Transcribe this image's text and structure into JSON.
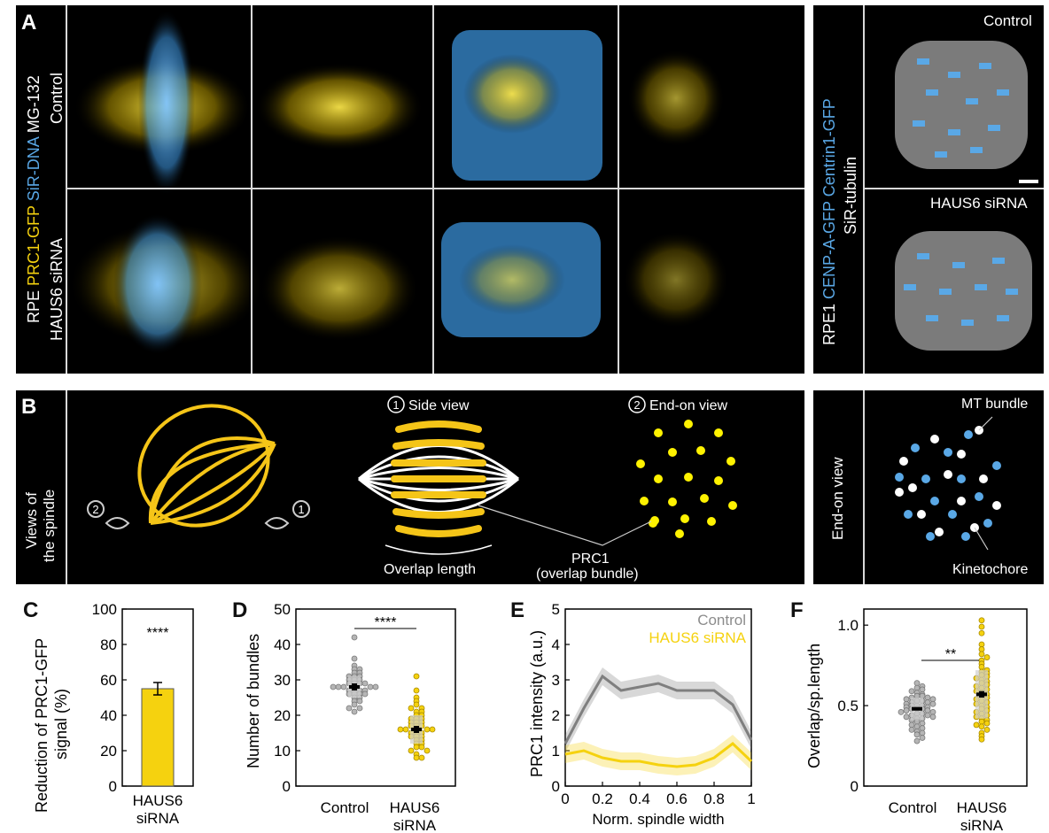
{
  "panel_a": {
    "label": "A",
    "left_axis": {
      "rpe": "RPE",
      "prc1": "PRC1-GFP",
      "sir_dna": "SiR-DNA",
      "mg": "MG-132"
    },
    "rows": [
      "Control",
      "HAUS6 siRNA"
    ],
    "right_axis": {
      "rpe1": "RPE1",
      "cenpa": "CENP-A-GFP",
      "centrin": "Centrin1-GFP",
      "sir_tub": "SiR-tubulin"
    },
    "right_rows": [
      "Control",
      "HAUS6 siRNA"
    ]
  },
  "panel_b": {
    "label": "B",
    "side_title": "Views of the spindle",
    "side_title_line1": "Views of",
    "side_title_line2": "the spindle",
    "num1": "1",
    "num2": "2",
    "side_view": "Side view",
    "end_on_view": "End-on view",
    "overlap_length": "Overlap length",
    "prc1": "PRC1",
    "prc1_sub": "(overlap bundle)",
    "right_title": "End-on view",
    "mt_bundle": "MT bundle",
    "kinetochore": "Kinetochore",
    "colors": {
      "yellow": "#f5c518",
      "blue": "#5aa8e6",
      "white": "#ffffff"
    }
  },
  "panel_c": {
    "label": "C",
    "ylabel_line1": "Reduction of PRC1-GFP",
    "ylabel_line2": "signal (%)",
    "sig": "****",
    "xcat_line1": "HAUS6",
    "xcat_line2": "siRNA",
    "yticks": [
      "0",
      "20",
      "40",
      "60",
      "80",
      "100"
    ]
  },
  "panel_d": {
    "label": "D",
    "ylabel": "Number of bundles",
    "sig": "****",
    "cat1": "Control",
    "cat2_line1": "HAUS6",
    "cat2_line2": "siRNA",
    "yticks": [
      "0",
      "10",
      "20",
      "30",
      "40",
      "50"
    ]
  },
  "panel_e": {
    "label": "E",
    "ylabel": "PRC1 intensity (a.u.)",
    "xlabel": "Norm. spindle width",
    "legend_control": "Control",
    "legend_haus": "HAUS6 siRNA",
    "yticks": [
      "0",
      "1",
      "2",
      "3",
      "4",
      "5"
    ],
    "xticks": [
      "0",
      "0.2",
      "0.4",
      "0.6",
      "0.8",
      "1"
    ]
  },
  "panel_f": {
    "label": "F",
    "ylabel": "Overlap/sp.length",
    "sig": "**",
    "cat1": "Control",
    "cat2_line1": "HAUS6",
    "cat2_line2": "siRNA",
    "yticks": [
      "0",
      "0.5",
      "1.0"
    ]
  },
  "chart_data": [
    {
      "type": "bar",
      "categories": [
        "HAUS6 siRNA"
      ],
      "values": [
        55
      ],
      "error": [
        3.5
      ],
      "ylim": [
        0,
        100
      ],
      "ylabel": "Reduction of PRC1-GFP signal (%)",
      "color": "#f5d20f"
    },
    {
      "type": "scatter",
      "ylabel": "Number of bundles",
      "ylim": [
        0,
        50
      ],
      "series": [
        {
          "name": "Control",
          "mean": 28,
          "sem": 1,
          "sd": 3,
          "values": [
            42,
            36,
            34,
            33,
            33,
            32,
            32,
            31,
            31,
            31,
            30,
            30,
            30,
            29,
            29,
            29,
            29,
            28,
            28,
            28,
            28,
            28,
            27,
            27,
            27,
            27,
            26,
            26,
            26,
            26,
            25,
            25,
            24,
            24,
            23,
            22,
            22,
            21
          ]
        },
        {
          "name": "HAUS6 siRNA",
          "mean": 16,
          "sem": 1,
          "sd": 4,
          "values": [
            31,
            27,
            25,
            24,
            23,
            22,
            22,
            21,
            21,
            20,
            20,
            19,
            19,
            19,
            18,
            18,
            18,
            17,
            17,
            17,
            16,
            16,
            16,
            16,
            15,
            15,
            15,
            14,
            14,
            14,
            13,
            13,
            12,
            12,
            11,
            11,
            10,
            10,
            9,
            8,
            8
          ]
        }
      ]
    },
    {
      "type": "line",
      "ylabel": "PRC1 intensity (a.u.)",
      "xlabel": "Norm. spindle width",
      "ylim": [
        0,
        5
      ],
      "xlim": [
        0,
        1
      ],
      "series": [
        {
          "name": "Control",
          "x": [
            0,
            0.1,
            0.2,
            0.3,
            0.4,
            0.5,
            0.6,
            0.7,
            0.8,
            0.9,
            1.0
          ],
          "y": [
            1.2,
            2.2,
            3.1,
            2.7,
            2.8,
            2.9,
            2.7,
            2.7,
            2.7,
            2.3,
            1.3
          ],
          "color": "#7f7f7f"
        },
        {
          "name": "HAUS6 siRNA",
          "x": [
            0,
            0.1,
            0.2,
            0.3,
            0.4,
            0.5,
            0.6,
            0.7,
            0.8,
            0.9,
            1.0
          ],
          "y": [
            0.9,
            1.0,
            0.8,
            0.7,
            0.7,
            0.6,
            0.55,
            0.6,
            0.8,
            1.2,
            0.7
          ],
          "color": "#f5d20f"
        }
      ]
    },
    {
      "type": "scatter",
      "ylabel": "Overlap/sp.length",
      "ylim": [
        0,
        1.1
      ],
      "series": [
        {
          "name": "Control",
          "mean": 0.48,
          "sem": 0.01,
          "sd": 0.07,
          "values": [
            0.64,
            0.62,
            0.61,
            0.6,
            0.59,
            0.58,
            0.57,
            0.56,
            0.56,
            0.55,
            0.55,
            0.54,
            0.54,
            0.53,
            0.53,
            0.52,
            0.52,
            0.51,
            0.51,
            0.5,
            0.5,
            0.5,
            0.49,
            0.49,
            0.48,
            0.48,
            0.48,
            0.47,
            0.47,
            0.46,
            0.46,
            0.45,
            0.45,
            0.44,
            0.44,
            0.43,
            0.43,
            0.42,
            0.42,
            0.41,
            0.4,
            0.39,
            0.38,
            0.37,
            0.36,
            0.35,
            0.34,
            0.33,
            0.32,
            0.3,
            0.28
          ]
        },
        {
          "name": "HAUS6 siRNA",
          "mean": 0.57,
          "sem": 0.02,
          "sd": 0.15,
          "values": [
            1.03,
            0.99,
            0.95,
            0.88,
            0.85,
            0.82,
            0.8,
            0.78,
            0.76,
            0.74,
            0.72,
            0.71,
            0.7,
            0.69,
            0.68,
            0.67,
            0.66,
            0.65,
            0.64,
            0.63,
            0.62,
            0.61,
            0.6,
            0.59,
            0.58,
            0.57,
            0.56,
            0.55,
            0.54,
            0.53,
            0.52,
            0.51,
            0.5,
            0.49,
            0.48,
            0.47,
            0.46,
            0.45,
            0.44,
            0.43,
            0.42,
            0.41,
            0.4,
            0.39,
            0.38,
            0.37,
            0.35,
            0.33,
            0.31,
            0.29
          ]
        }
      ]
    }
  ]
}
